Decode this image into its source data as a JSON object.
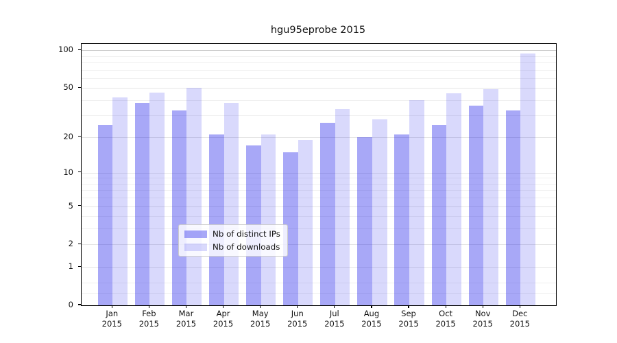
{
  "title": "hgu95eprobe 2015",
  "colors": {
    "bar_ips": "rgba(0,0,232,0.34)",
    "bar_downloads": "rgba(0,0,232,0.15)",
    "grid_major": "#e4e4e4",
    "grid_top": "#c9c9c9",
    "grid_minor": "#f0f0f0",
    "spine": "#000000",
    "text": "#111111"
  },
  "legend": {
    "items": [
      {
        "label": "Nb of distinct IPs",
        "series": "ips"
      },
      {
        "label": "Nb of downloads",
        "series": "downloads"
      }
    ]
  },
  "x_axis": {
    "months": [
      "Jan",
      "Feb",
      "Mar",
      "Apr",
      "May",
      "Jun",
      "Jul",
      "Aug",
      "Sep",
      "Oct",
      "Nov",
      "Dec"
    ],
    "year": "2015"
  },
  "y_axis": {
    "major_ticks": [
      0,
      1,
      2,
      5,
      10,
      20,
      50,
      100
    ],
    "minor_ticks": [
      0.25,
      0.5,
      3,
      4,
      6,
      7,
      8,
      9,
      30,
      40,
      60,
      70,
      80,
      90
    ]
  },
  "chart_data": {
    "type": "bar",
    "title": "hgu95eprobe 2015",
    "y_scale": "log1p",
    "ylim": [
      0,
      101
    ],
    "grid": true,
    "legend_position": "lower center",
    "categories": [
      "Jan 2015",
      "Feb 2015",
      "Mar 2015",
      "Apr 2015",
      "May 2015",
      "Jun 2015",
      "Jul 2015",
      "Aug 2015",
      "Sep 2015",
      "Oct 2015",
      "Nov 2015",
      "Dec 2015"
    ],
    "series": [
      {
        "name": "Nb of distinct IPs",
        "values": [
          25,
          38,
          33,
          21,
          17,
          15,
          26,
          20,
          21,
          25,
          36,
          33
        ]
      },
      {
        "name": "Nb of downloads",
        "values": [
          42,
          46,
          50,
          38,
          21,
          19,
          34,
          28,
          40,
          45,
          49,
          94
        ]
      }
    ],
    "y_ticks": [
      0,
      1,
      2,
      5,
      10,
      20,
      50,
      100
    ],
    "xlabel": "",
    "ylabel": ""
  }
}
